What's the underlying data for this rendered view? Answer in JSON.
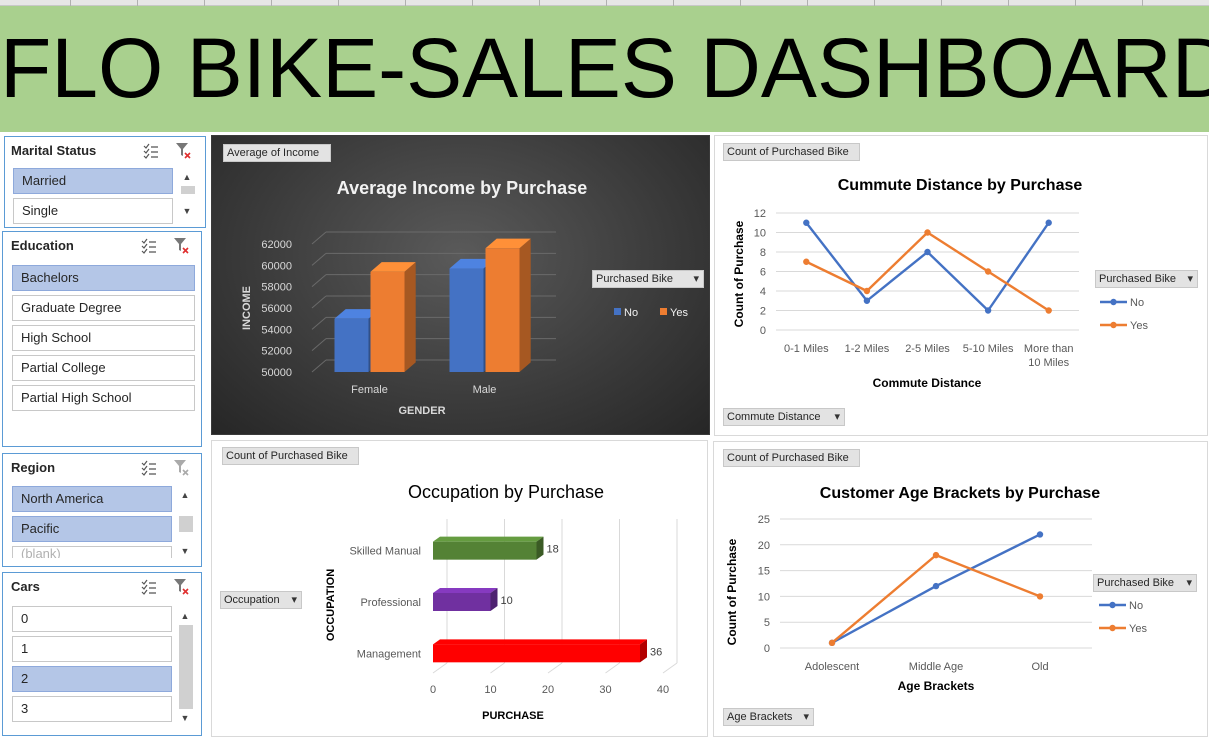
{
  "title": "FLO BIKE-SALES DASHBOARD",
  "slicers": {
    "marital": {
      "label": "Marital Status",
      "items": [
        {
          "label": "Married",
          "selected": true
        },
        {
          "label": "Single",
          "selected": false
        }
      ]
    },
    "education": {
      "label": "Education",
      "items": [
        {
          "label": "Bachelors",
          "selected": true
        },
        {
          "label": "Graduate Degree",
          "selected": false
        },
        {
          "label": "High School",
          "selected": false
        },
        {
          "label": "Partial College",
          "selected": false
        },
        {
          "label": "Partial High School",
          "selected": false
        }
      ]
    },
    "region": {
      "label": "Region",
      "items": [
        {
          "label": "North America",
          "selected": true
        },
        {
          "label": "Pacific",
          "selected": true
        },
        {
          "label": "(blank)",
          "selected": false
        }
      ]
    },
    "cars": {
      "label": "Cars",
      "items": [
        {
          "label": "0",
          "selected": false
        },
        {
          "label": "1",
          "selected": false
        },
        {
          "label": "2",
          "selected": true
        },
        {
          "label": "3",
          "selected": false
        }
      ]
    }
  },
  "pivot_buttons": {
    "avg_income": "Average of Income",
    "count_purchased_1": "Count of Purchased Bike",
    "count_purchased_2": "Count of Purchased Bike",
    "count_purchased_3": "Count of Purchased Bike",
    "purchased_bike_1": "Purchased Bike",
    "purchased_bike_2": "Purchased Bike",
    "purchased_bike_3": "Purchased Bike",
    "commute_distance": "Commute Distance",
    "occupation": "Occupation",
    "age_brackets": "Age Brackets"
  },
  "colors": {
    "no": "#4472c4",
    "yes": "#ed7d31",
    "banner": "#a9d08e",
    "selected": "#b4c6e7"
  },
  "chart_data": [
    {
      "type": "bar",
      "title": "Average Income by Purchase",
      "xlabel": "GENDER",
      "ylabel": "INCOME",
      "categories": [
        "Female",
        "Male"
      ],
      "series": [
        {
          "name": "No",
          "values": [
            55000,
            59700
          ]
        },
        {
          "name": "Yes",
          "values": [
            59400,
            61600
          ]
        }
      ],
      "ylim": [
        50000,
        62000
      ],
      "yticks": [
        "50000",
        "52000",
        "54000",
        "56000",
        "58000",
        "60000",
        "62000"
      ],
      "legend": "right"
    },
    {
      "type": "line",
      "title": "Cummute Distance by Purchase",
      "xlabel": "Commute Distance",
      "ylabel": "Count of Purchase",
      "categories": [
        "0-1 Miles",
        "1-2 Miles",
        "2-5 Miles",
        "5-10 Miles",
        "More than 10 Miles"
      ],
      "series": [
        {
          "name": "No",
          "values": [
            11,
            3,
            8,
            2,
            11
          ]
        },
        {
          "name": "Yes",
          "values": [
            7,
            4,
            10,
            6,
            2
          ]
        }
      ],
      "ylim": [
        0,
        12
      ],
      "yticks": [
        "0",
        "2",
        "4",
        "6",
        "8",
        "10",
        "12"
      ],
      "legend": "right"
    },
    {
      "type": "bar",
      "title": "Occupation by Purchase",
      "xlabel": "PURCHASE",
      "ylabel": "OCCUPATION",
      "categories": [
        "Skilled Manual",
        "Professional",
        "Management"
      ],
      "values": [
        18,
        10,
        36
      ],
      "value_labels": [
        "18",
        "10",
        "36"
      ],
      "bar_colors": [
        "#548235",
        "#7030a0",
        "#ff0000"
      ],
      "xlim": [
        0,
        40
      ],
      "xticks": [
        "0",
        "10",
        "20",
        "30",
        "40"
      ]
    },
    {
      "type": "line",
      "title": "Customer Age Brackets by Purchase",
      "xlabel": "Age Brackets",
      "ylabel": "Count of Purchase",
      "categories": [
        "Adolescent",
        "Middle Age",
        "Old"
      ],
      "series": [
        {
          "name": "No",
          "values": [
            1,
            12,
            22
          ]
        },
        {
          "name": "Yes",
          "values": [
            1,
            18,
            10
          ]
        }
      ],
      "ylim": [
        0,
        25
      ],
      "yticks": [
        "0",
        "5",
        "10",
        "15",
        "20",
        "25"
      ],
      "legend": "right"
    }
  ]
}
